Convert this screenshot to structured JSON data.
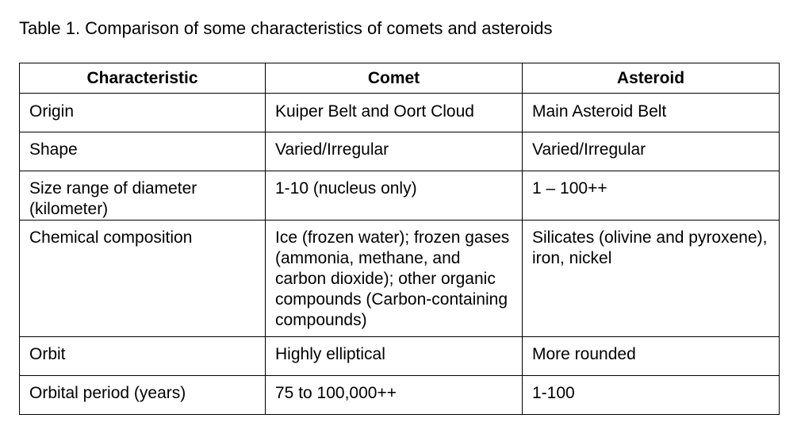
{
  "caption": "Table 1.  Comparison of some characteristics of comets and asteroids",
  "table": {
    "headers": [
      "Characteristic",
      "Comet",
      "Asteroid"
    ],
    "rows": [
      [
        "Origin",
        "Kuiper Belt and Oort Cloud",
        "Main Asteroid Belt"
      ],
      [
        "Shape",
        "Varied/Irregular",
        "Varied/Irregular"
      ],
      [
        "Size range of diameter (kilometer)",
        "1-10 (nucleus only)",
        "1 – 100++"
      ],
      [
        "Chemical composition",
        "Ice (frozen water); frozen gases (ammonia, methane, and carbon dioxide); other organic compounds (Carbon-containing compounds)",
        "Silicates (olivine and pyroxene), iron, nickel"
      ],
      [
        "Orbit",
        "Highly elliptical",
        "More rounded"
      ],
      [
        "Orbital period (years)",
        "75 to 100,000++",
        "1-100"
      ]
    ]
  }
}
